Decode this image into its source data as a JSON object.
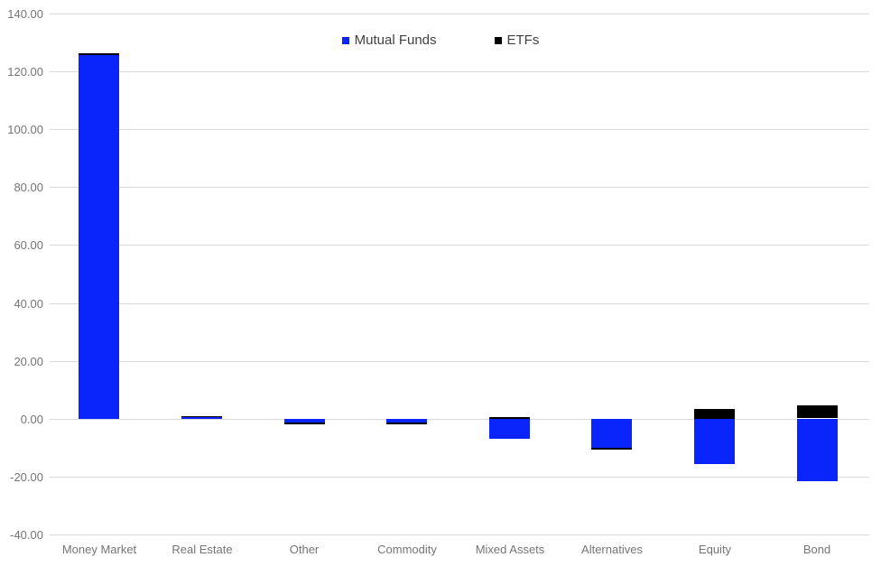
{
  "chart_data": {
    "type": "bar",
    "stacked": true,
    "title": "",
    "xlabel": "",
    "ylabel": "",
    "categories": [
      "Money Market",
      "Real Estate",
      "Other",
      "Commodity",
      "Mixed Assets",
      "Alternatives",
      "Equity",
      "Bond"
    ],
    "series": [
      {
        "name": "Mutual Funds",
        "color": "#0a25fb",
        "values": [
          125.7,
          0.8,
          -1.3,
          -1.3,
          -6.9,
          -10.0,
          -15.7,
          -21.5
        ]
      },
      {
        "name": "ETFs",
        "color": "#000000",
        "values": [
          0.6,
          0.2,
          -0.6,
          -0.5,
          0.7,
          -0.6,
          3.4,
          4.5
        ]
      }
    ],
    "ylim": [
      -40,
      140
    ],
    "ytick_step": 20,
    "y_ticks": [
      "140.00",
      "120.00",
      "100.00",
      "80.00",
      "60.00",
      "40.00",
      "20.00",
      "0.00",
      "-20.00",
      "-40.00"
    ],
    "grid": true,
    "legend_position": "top-center",
    "colors": {
      "background": "#ffffff",
      "gridline": "#d9d9d9",
      "axis_label_text": "#757575",
      "legend_text": "#404040"
    }
  }
}
